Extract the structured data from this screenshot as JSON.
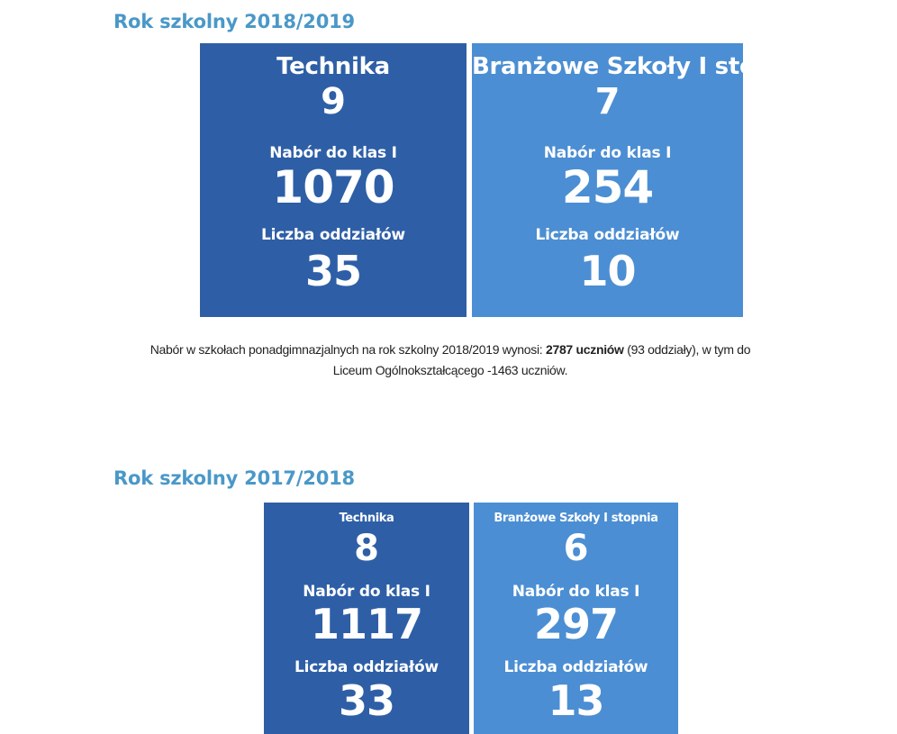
{
  "sections": [
    {
      "title": "Rok szkolny 2018/2019",
      "boxes": [
        {
          "name": "Technika",
          "count": "9",
          "intake_label": "Nabór do klas I",
          "intake_value": "1070",
          "classes_label": "Liczba oddziałów",
          "classes_value": "35",
          "color": "#2e5fa6"
        },
        {
          "name": "Branżowe Szkoły I stopnia",
          "count": "7",
          "intake_label": "Nabór do klas I",
          "intake_value": "254",
          "classes_label": "Liczba oddziałów",
          "classes_value": "10",
          "color": "#4b8ed3"
        }
      ]
    },
    {
      "title": "Rok szkolny 2017/2018",
      "boxes": [
        {
          "name": "Technika",
          "count": "8",
          "intake_label": "Nabór do klas I",
          "intake_value": "1117",
          "classes_label": "Liczba oddziałów",
          "classes_value": "33",
          "color": "#2e5fa6"
        },
        {
          "name": "Branżowe Szkoły I stopnia",
          "count": "6",
          "intake_label": "Nabór do klas I",
          "intake_value": "297",
          "classes_label": "Liczba oddziałów",
          "classes_value": "13",
          "color": "#4b8ed3"
        }
      ]
    }
  ],
  "summary": {
    "part1": "Nabór w szkołach ponadgimnazjalnych na rok szkolny 2018/2019 wynosi: ",
    "bold": "2787 uczniów",
    "part2": " (93 oddziały), w tym do",
    "line2": "Liceum Ogólnokształcącego -1463 uczniów."
  }
}
